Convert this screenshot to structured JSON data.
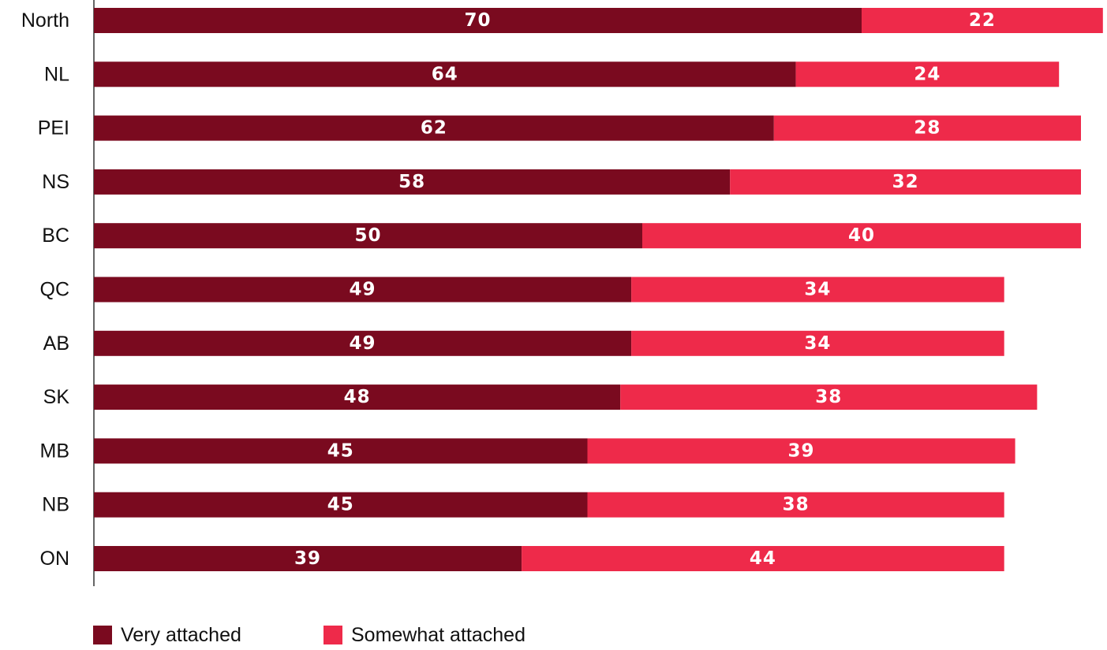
{
  "chart_data": {
    "type": "bar",
    "orientation": "horizontal",
    "stacked": true,
    "categories": [
      "North",
      "NL",
      "PEI",
      "NS",
      "BC",
      "QC",
      "AB",
      "SK",
      "MB",
      "NB",
      "ON"
    ],
    "series": [
      {
        "name": "Very attached",
        "color": "#7a0a1f",
        "values": [
          70,
          64,
          62,
          58,
          50,
          49,
          49,
          48,
          45,
          45,
          39
        ]
      },
      {
        "name": "Somewhat attached",
        "color": "#ee2a4a",
        "values": [
          22,
          24,
          28,
          32,
          40,
          34,
          34,
          38,
          39,
          38,
          44
        ]
      }
    ],
    "xlim": [
      0,
      92
    ],
    "grid": false,
    "data_labels": true,
    "legend_position": "bottom-left"
  }
}
